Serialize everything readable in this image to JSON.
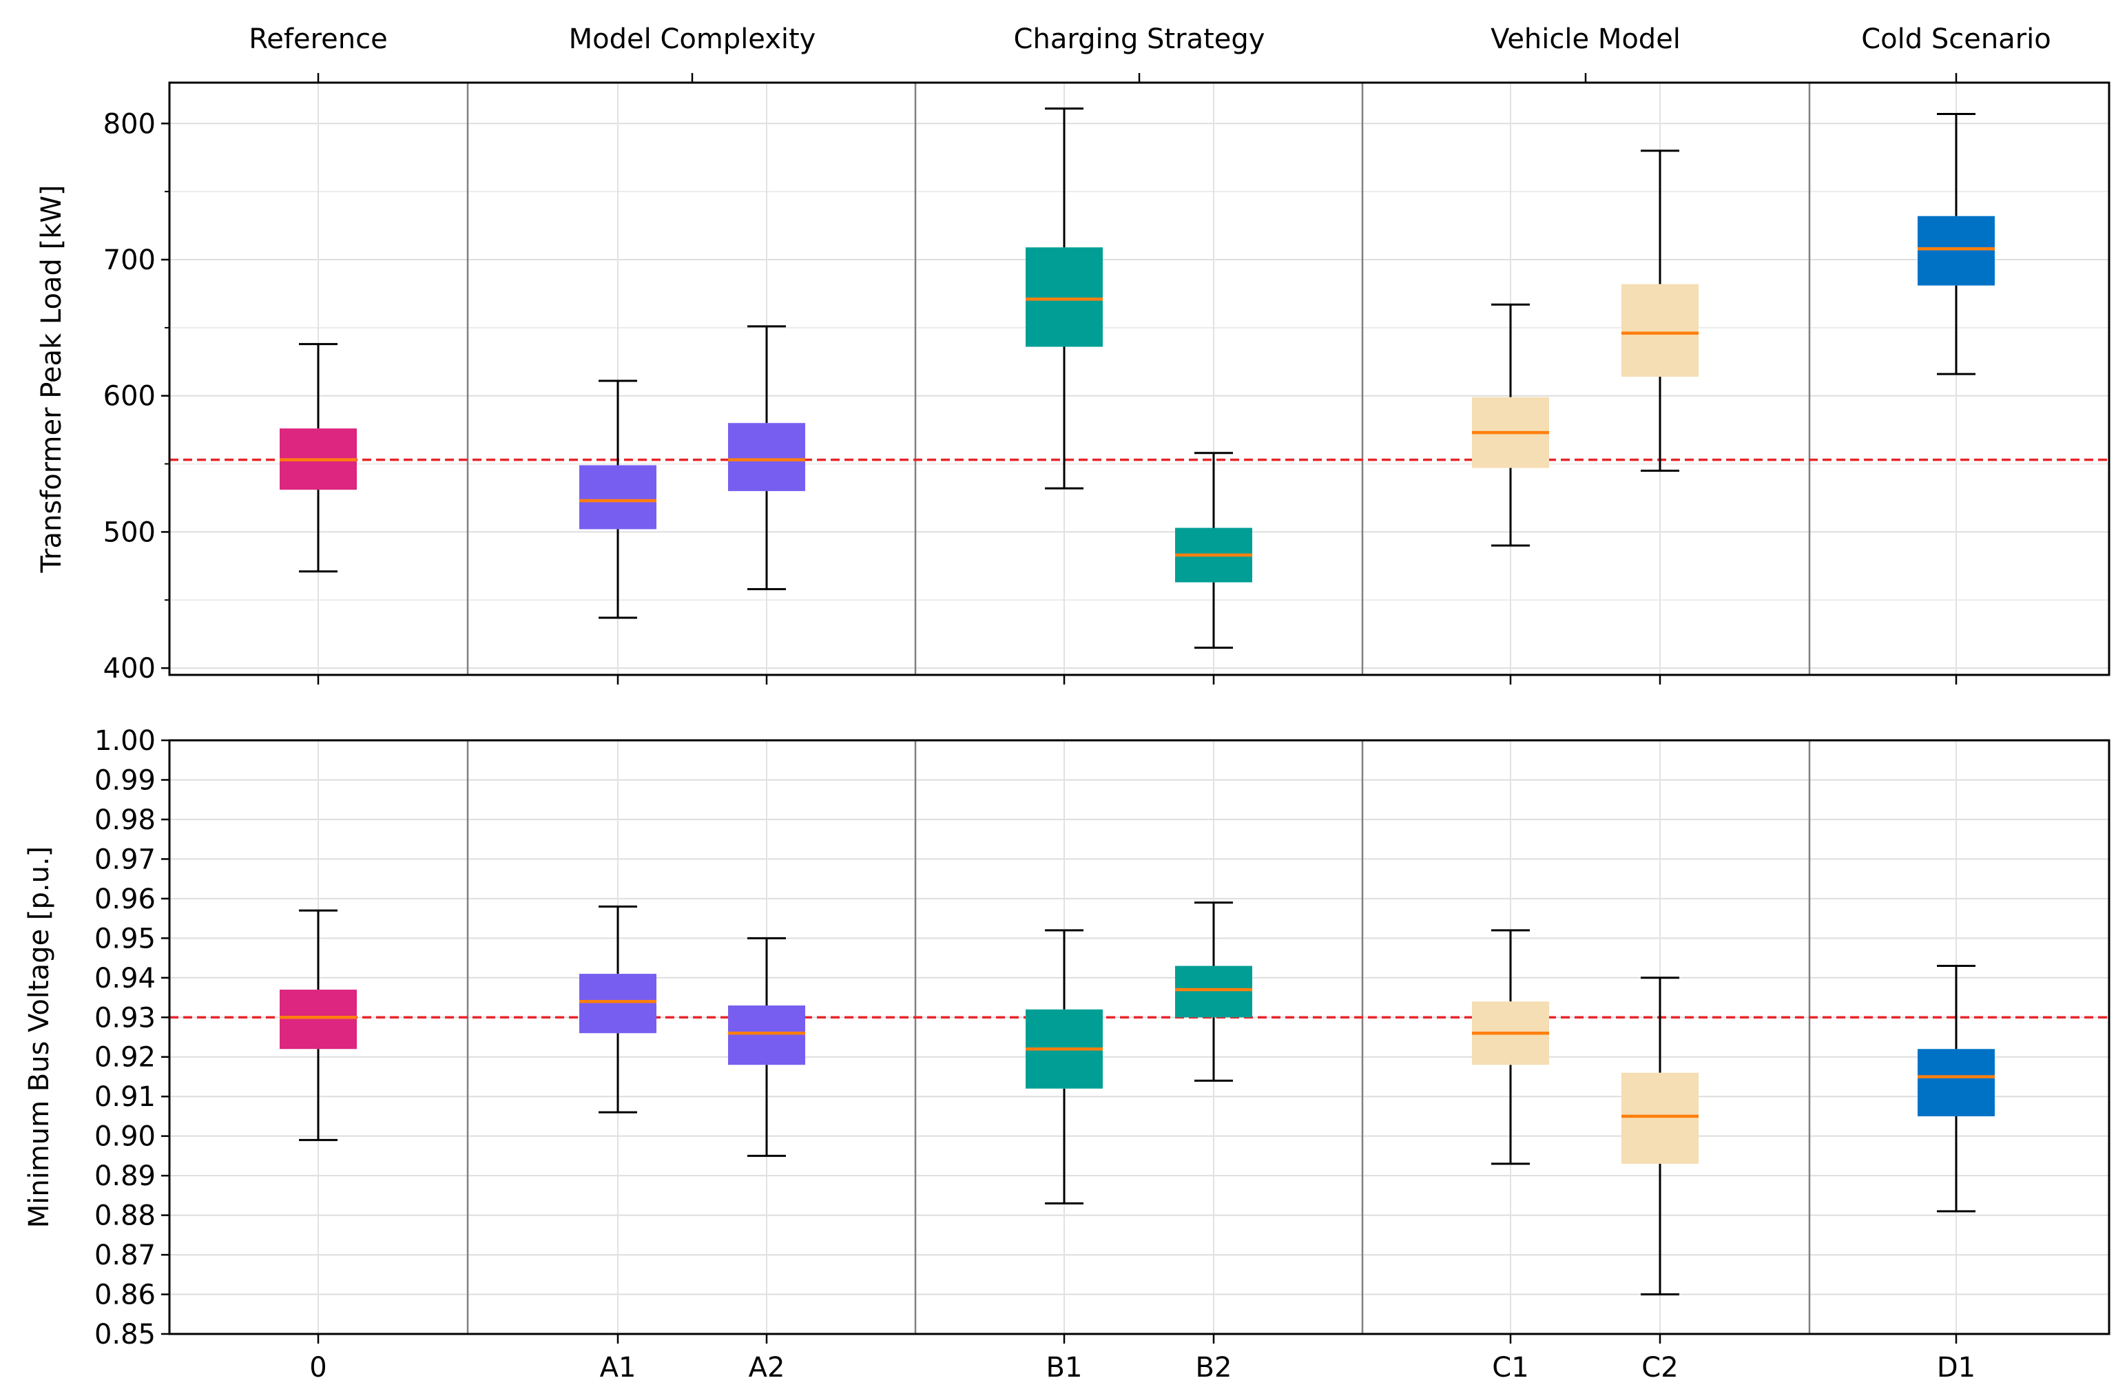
{
  "chart_data": [
    {
      "type": "box",
      "ylabel": "Transformer Peak Load [kW]",
      "ylim": [
        395,
        830
      ],
      "yticks": [
        400,
        500,
        600,
        700,
        800
      ],
      "grid": true,
      "reference_line": {
        "value": 553,
        "style": "dashed",
        "color": "#e8262b"
      },
      "groups": [
        {
          "label": "Reference",
          "categories": [
            "0"
          ]
        },
        {
          "label": "Model Complexity",
          "categories": [
            "A1",
            "A2"
          ]
        },
        {
          "label": "Charging Strategy",
          "categories": [
            "B1",
            "B2"
          ]
        },
        {
          "label": "Vehicle Model",
          "categories": [
            "C1",
            "C2"
          ]
        },
        {
          "label": "Cold Scenario",
          "categories": [
            "D1"
          ]
        }
      ],
      "boxes": [
        {
          "category": "0",
          "whisker_low": 471,
          "q1": 531,
          "median": 553,
          "q3": 576,
          "whisker_high": 638,
          "color": "#dc267f"
        },
        {
          "category": "A1",
          "whisker_low": 437,
          "q1": 502,
          "median": 523,
          "q3": 549,
          "whisker_high": 611,
          "color": "#785ef0"
        },
        {
          "category": "A2",
          "whisker_low": 458,
          "q1": 530,
          "median": 553,
          "q3": 580,
          "whisker_high": 651,
          "color": "#785ef0"
        },
        {
          "category": "B1",
          "whisker_low": 532,
          "q1": 636,
          "median": 671,
          "q3": 709,
          "whisker_high": 811,
          "color": "#009e95"
        },
        {
          "category": "B2",
          "whisker_low": 415,
          "q1": 463,
          "median": 483,
          "q3": 503,
          "whisker_high": 558,
          "color": "#009e95"
        },
        {
          "category": "C1",
          "whisker_low": 490,
          "q1": 547,
          "median": 573,
          "q3": 599,
          "whisker_high": 667,
          "color": "#f5deb3"
        },
        {
          "category": "C2",
          "whisker_low": 545,
          "q1": 614,
          "median": 646,
          "q3": 682,
          "whisker_high": 780,
          "color": "#f5deb3"
        },
        {
          "category": "D1",
          "whisker_low": 616,
          "q1": 681,
          "median": 708,
          "q3": 732,
          "whisker_high": 807,
          "color": "#0072c6"
        }
      ]
    },
    {
      "type": "box",
      "ylabel": "Minimum Bus Voltage [p.u.]",
      "ylim": [
        0.85,
        1.0
      ],
      "yticks": [
        "0.85",
        "0.86",
        "0.87",
        "0.88",
        "0.89",
        "0.90",
        "0.91",
        "0.92",
        "0.93",
        "0.94",
        "0.95",
        "0.96",
        "0.97",
        "0.98",
        "0.99",
        "1.00"
      ],
      "grid": true,
      "reference_line": {
        "value": 0.93,
        "style": "dashed",
        "color": "#e8262b"
      },
      "boxes": [
        {
          "category": "0",
          "whisker_low": 0.899,
          "q1": 0.922,
          "median": 0.93,
          "q3": 0.937,
          "whisker_high": 0.957,
          "color": "#dc267f"
        },
        {
          "category": "A1",
          "whisker_low": 0.906,
          "q1": 0.926,
          "median": 0.934,
          "q3": 0.941,
          "whisker_high": 0.958,
          "color": "#785ef0"
        },
        {
          "category": "A2",
          "whisker_low": 0.895,
          "q1": 0.918,
          "median": 0.926,
          "q3": 0.933,
          "whisker_high": 0.95,
          "color": "#785ef0"
        },
        {
          "category": "B1",
          "whisker_low": 0.883,
          "q1": 0.912,
          "median": 0.922,
          "q3": 0.932,
          "whisker_high": 0.952,
          "color": "#009e95"
        },
        {
          "category": "B2",
          "whisker_low": 0.914,
          "q1": 0.93,
          "median": 0.937,
          "q3": 0.943,
          "whisker_high": 0.959,
          "color": "#009e95"
        },
        {
          "category": "C1",
          "whisker_low": 0.893,
          "q1": 0.918,
          "median": 0.926,
          "q3": 0.934,
          "whisker_high": 0.952,
          "color": "#f5deb3"
        },
        {
          "category": "C2",
          "whisker_low": 0.86,
          "q1": 0.893,
          "median": 0.905,
          "q3": 0.916,
          "whisker_high": 0.94,
          "color": "#f5deb3"
        },
        {
          "category": "D1",
          "whisker_low": 0.881,
          "q1": 0.905,
          "median": 0.915,
          "q3": 0.922,
          "whisker_high": 0.943,
          "color": "#0072c6"
        }
      ]
    }
  ],
  "x_tick_labels": [
    "0",
    "A1",
    "A2",
    "B1",
    "B2",
    "C1",
    "C2",
    "D1"
  ],
  "median_color": "#ff7f0e"
}
